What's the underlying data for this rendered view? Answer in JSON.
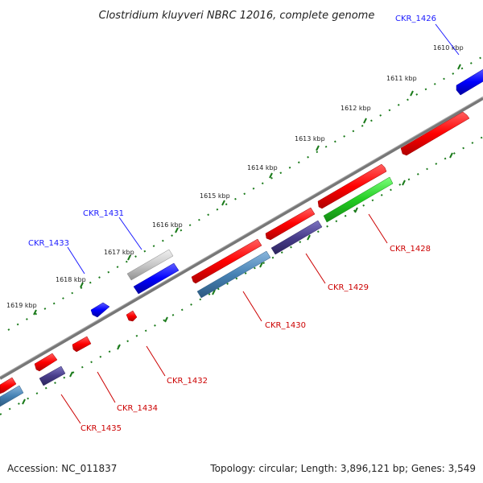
{
  "title": "Clostridium kluyveri NBRC 12016, complete genome",
  "footer": {
    "accession": "Accession: NC_011837",
    "topology": "Topology: circular; Length: 3,896,121 bp; Genes: 3,549"
  },
  "ticks": [
    "1610 kbp",
    "1611 kbp",
    "1612 kbp",
    "1613 kbp",
    "1614 kbp",
    "1615 kbp",
    "1616 kbp",
    "1617 kbp",
    "1618 kbp",
    "1619 kbp"
  ],
  "gene_labels": {
    "ckr_1426": "CKR_1426",
    "ckr_1428": "CKR_1428",
    "ckr_1429": "CKR_1429",
    "ckr_1430": "CKR_1430",
    "ckr_1431": "CKR_1431",
    "ckr_1432": "CKR_1432",
    "ckr_1433": "CKR_1433",
    "ckr_1434": "CKR_1434",
    "ckr_1435": "CKR_1435"
  },
  "colors": {
    "backbone": "#808080",
    "red": "#ff0000",
    "blue": "#0000ff",
    "steel": "#4682b4",
    "purple": "#483d8b",
    "green": "#22cc22",
    "grey": "#c0c0c0",
    "dots": "#1a7a1a"
  }
}
